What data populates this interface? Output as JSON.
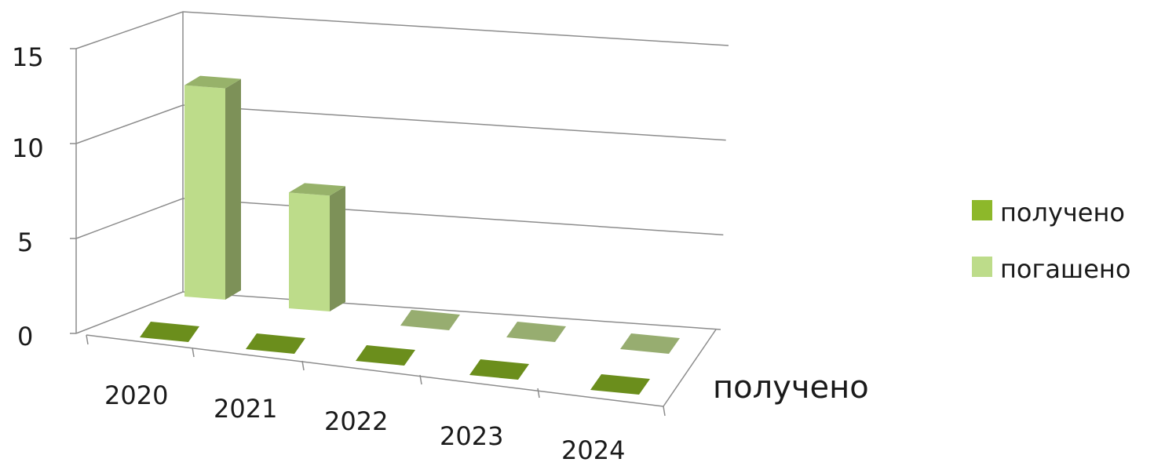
{
  "chart_data": {
    "type": "bar",
    "subtype": "3d-column",
    "categories": [
      "2020",
      "2021",
      "2022",
      "2023",
      "2024"
    ],
    "series": [
      {
        "name": "получено",
        "values": [
          0,
          0,
          0,
          0,
          0
        ],
        "color": "#6b8e23"
      },
      {
        "name": "погашено",
        "values": [
          11.5,
          7,
          0,
          0,
          0
        ],
        "color": "#bddc8a"
      }
    ],
    "y_ticks": [
      "0",
      "5",
      "10",
      "15"
    ],
    "ylim": [
      0,
      15
    ],
    "depth_label": "получено",
    "legend": {
      "position": "right",
      "items": [
        {
          "label": "получено",
          "color": "#8db82a"
        },
        {
          "label": "погашено",
          "color": "#bddc8a"
        }
      ]
    },
    "grid": true
  }
}
